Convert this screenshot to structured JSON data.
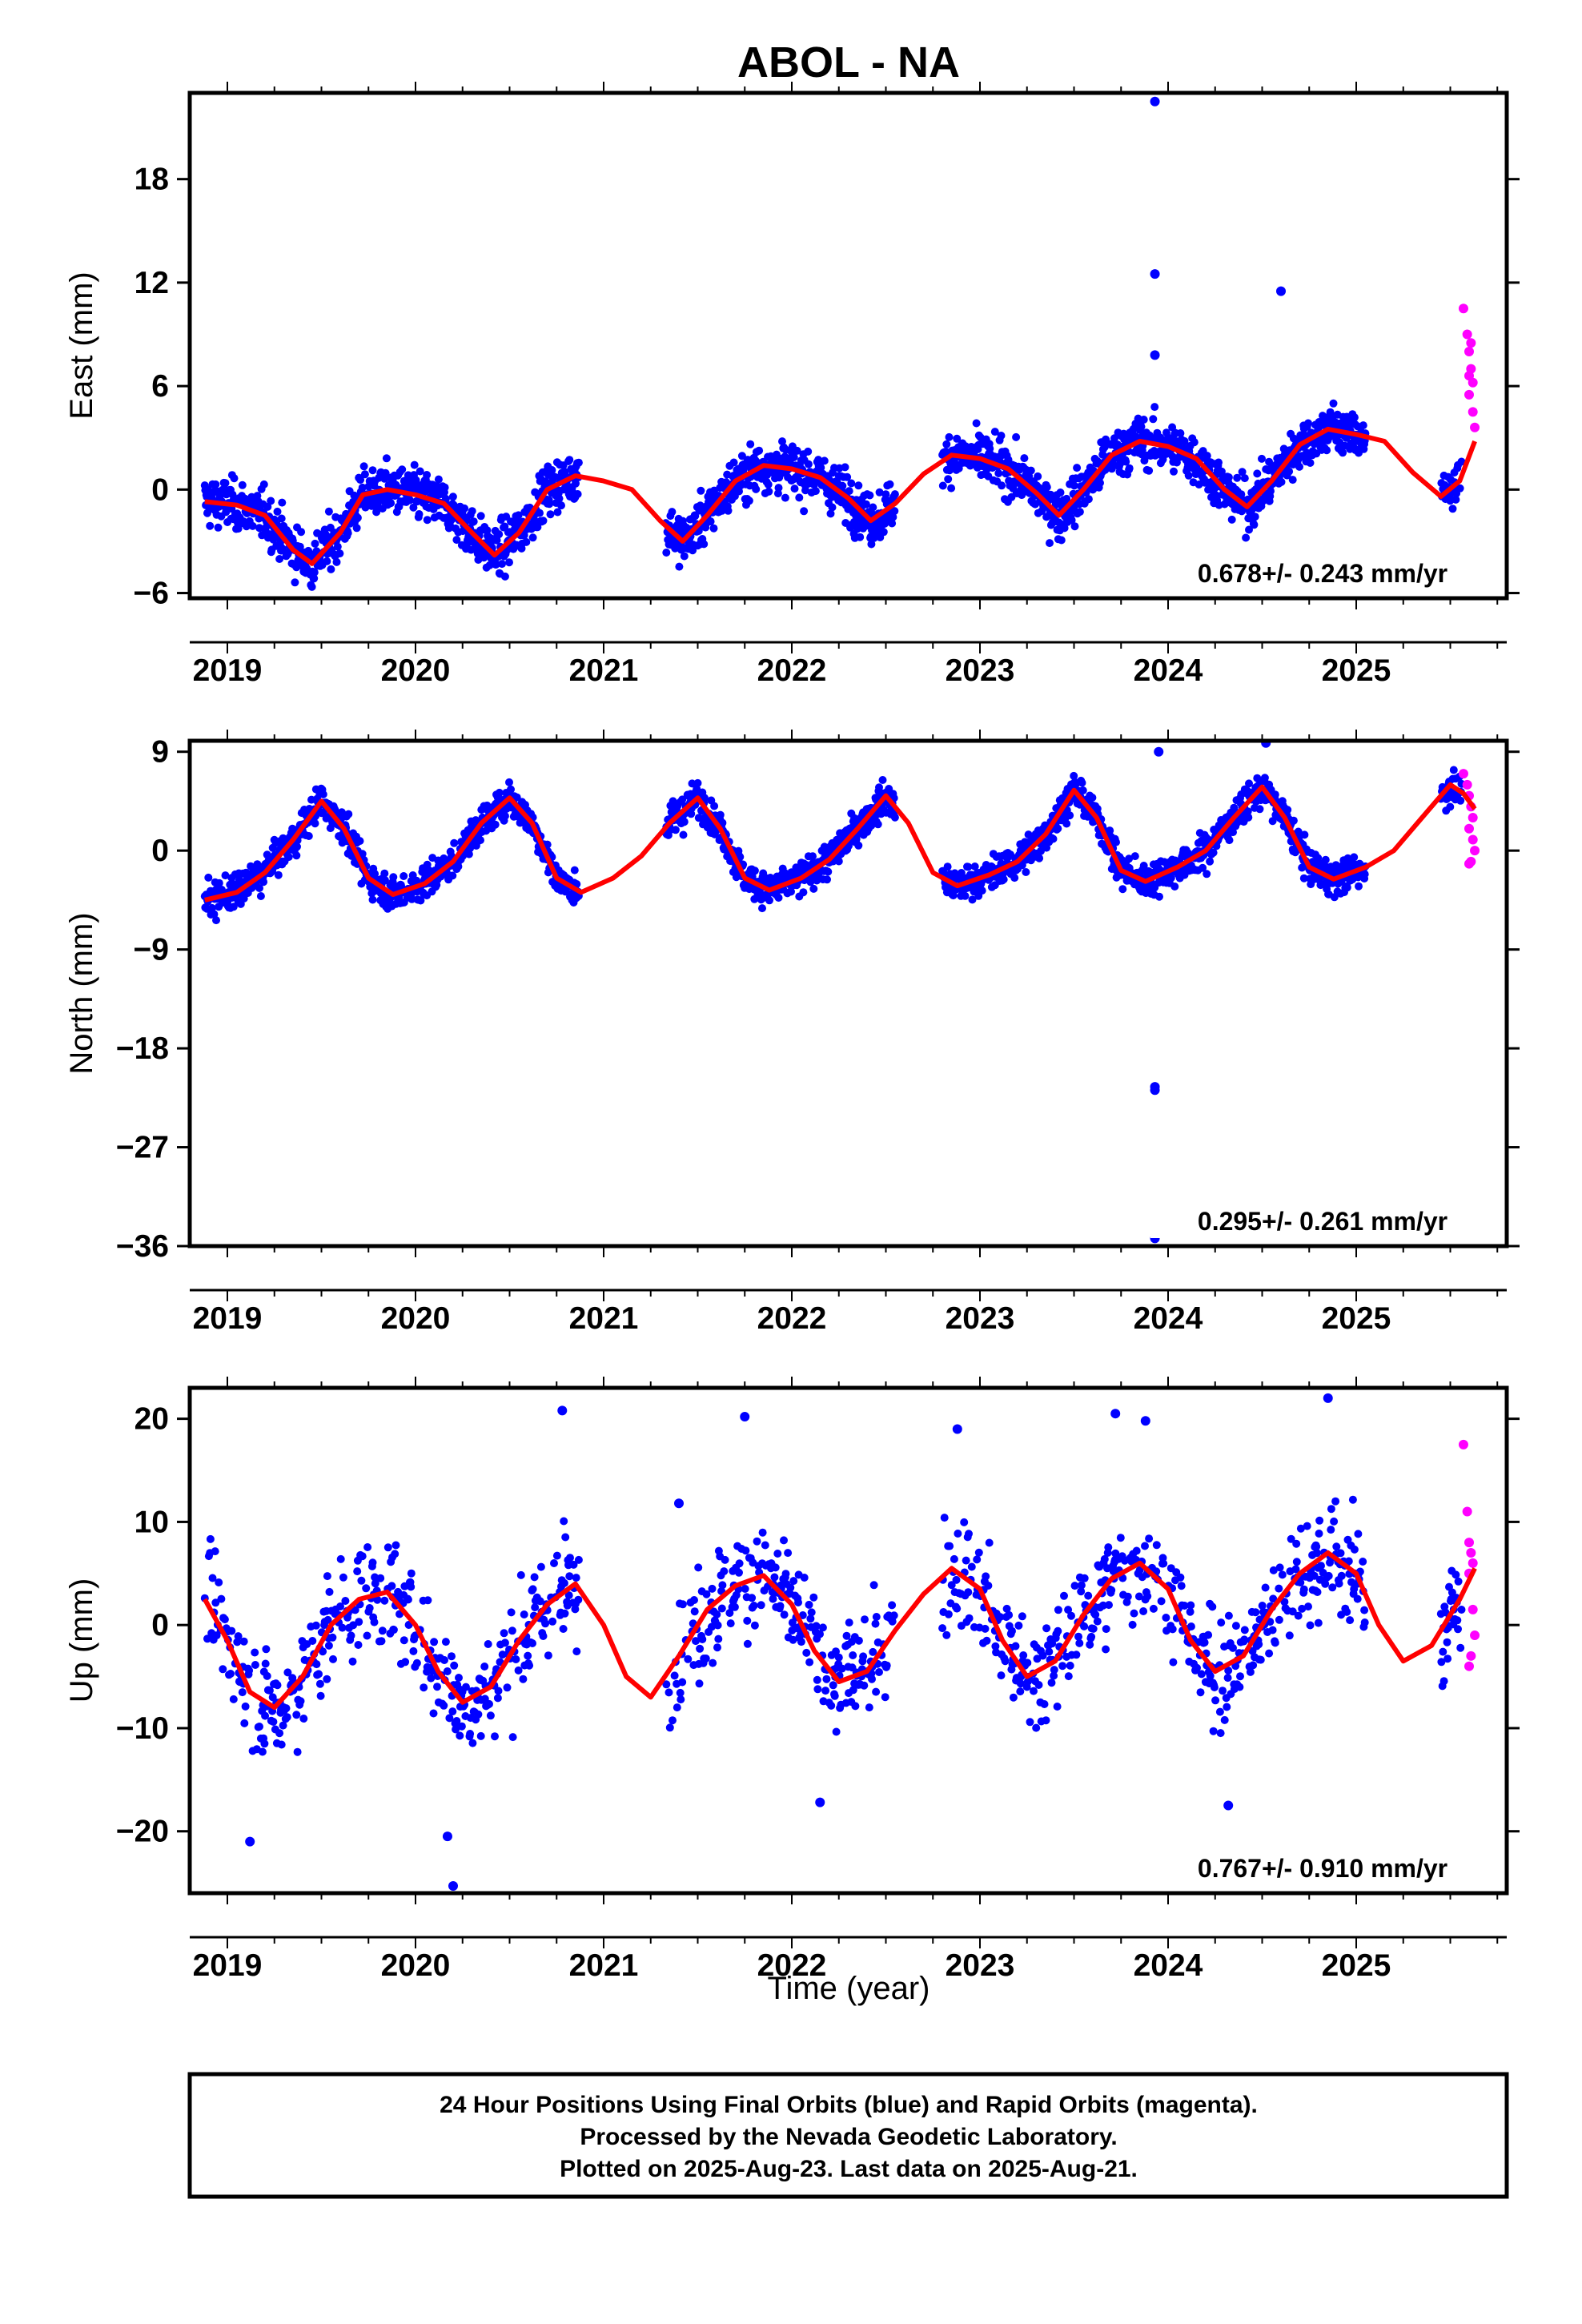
{
  "title": "ABOL - NA",
  "xlabel": "Time (year)",
  "footer": {
    "line1": "24 Hour Positions Using Final Orbits (blue) and Rapid Orbits (magenta).",
    "line2": "Processed by the Nevada Geodetic Laboratory.",
    "line3": "Plotted on 2025-Aug-23. Last data on 2025-Aug-21."
  },
  "colors": {
    "final": "#0000ff",
    "rapid": "#ff00ff",
    "model": "#ff0000",
    "axis": "#000000"
  },
  "chart_data": [
    {
      "type": "scatter",
      "ylabel": "East (mm)",
      "xlim": [
        2018.8,
        2025.8
      ],
      "ylim": [
        -6.3,
        23.0
      ],
      "x_ticks": [
        2019,
        2020,
        2021,
        2022,
        2023,
        2024,
        2025
      ],
      "y_ticks": [
        -6,
        0,
        6,
        12,
        18
      ],
      "rate": "0.678+/- 0.243 mm/yr",
      "model": {
        "name": "",
        "x": [
          2018.88,
          2019.05,
          2019.2,
          2019.35,
          2019.45,
          2019.6,
          2019.72,
          2019.85,
          2020.0,
          2020.15,
          2020.3,
          2020.42,
          2020.55,
          2020.7,
          2020.85,
          2021.0,
          2021.15,
          2021.3,
          2021.42,
          2021.55,
          2021.7,
          2021.85,
          2022.0,
          2022.15,
          2022.3,
          2022.42,
          2022.55,
          2022.7,
          2022.85,
          2023.0,
          2023.15,
          2023.3,
          2023.42,
          2023.55,
          2023.7,
          2023.85,
          2024.0,
          2024.15,
          2024.3,
          2024.42,
          2024.55,
          2024.7,
          2024.85,
          2025.0,
          2025.15,
          2025.3,
          2025.45,
          2025.55,
          2025.63
        ],
        "y": [
          -0.7,
          -0.9,
          -1.5,
          -3.5,
          -4.3,
          -2.5,
          -0.3,
          0.0,
          -0.3,
          -0.8,
          -2.5,
          -3.8,
          -2.5,
          0.0,
          0.8,
          0.5,
          0.0,
          -1.8,
          -3.0,
          -1.5,
          0.5,
          1.4,
          1.2,
          0.7,
          -0.5,
          -1.8,
          -0.8,
          0.9,
          2.0,
          1.8,
          1.2,
          -0.2,
          -1.5,
          0.0,
          2.0,
          2.8,
          2.5,
          1.8,
          0.0,
          -1.0,
          0.5,
          2.6,
          3.5,
          3.2,
          2.8,
          1.0,
          -0.4,
          0.5,
          2.8
        ]
      },
      "outliers": [
        [
          2023.93,
          22.5
        ],
        [
          2023.93,
          12.5
        ],
        [
          2023.93,
          7.8
        ],
        [
          2024.6,
          11.5
        ]
      ],
      "rapid": {
        "x": [
          2025.57,
          2025.59,
          2025.6,
          2025.61,
          2025.62,
          2025.6,
          2025.62,
          2025.63,
          2025.61,
          2025.6
        ],
        "y": [
          10.5,
          9.0,
          8.0,
          7.0,
          6.2,
          5.5,
          4.5,
          3.6,
          8.5,
          6.6
        ]
      }
    },
    {
      "type": "scatter",
      "ylabel": "North (mm)",
      "xlim": [
        2018.8,
        2025.8
      ],
      "ylim": [
        -36.0,
        10.0
      ],
      "x_ticks": [
        2019,
        2020,
        2021,
        2022,
        2023,
        2024,
        2025
      ],
      "y_ticks": [
        -36,
        -27,
        -18,
        -9,
        0,
        9
      ],
      "rate": "0.295+/- 0.261 mm/yr",
      "model": {
        "name": "",
        "x": [
          2018.88,
          2019.05,
          2019.2,
          2019.35,
          2019.5,
          2019.62,
          2019.75,
          2019.88,
          2020.05,
          2020.2,
          2020.35,
          2020.5,
          2020.62,
          2020.75,
          2020.88,
          2021.05,
          2021.2,
          2021.35,
          2021.5,
          2021.62,
          2021.75,
          2021.88,
          2022.05,
          2022.2,
          2022.35,
          2022.5,
          2022.62,
          2022.75,
          2022.88,
          2023.05,
          2023.2,
          2023.35,
          2023.5,
          2023.62,
          2023.75,
          2023.88,
          2024.05,
          2024.2,
          2024.35,
          2024.5,
          2024.62,
          2024.75,
          2024.88,
          2025.05,
          2025.2,
          2025.35,
          2025.5,
          2025.57,
          2025.63
        ],
        "y": [
          -4.5,
          -3.8,
          -2.0,
          1.0,
          4.5,
          2.0,
          -2.5,
          -4.0,
          -3.0,
          -1.0,
          2.5,
          4.8,
          2.5,
          -2.5,
          -3.8,
          -2.5,
          -0.5,
          2.5,
          4.8,
          2.0,
          -2.5,
          -3.6,
          -2.5,
          -0.8,
          2.0,
          5.0,
          2.5,
          -2.0,
          -3.2,
          -2.2,
          -1.0,
          1.5,
          5.5,
          3.0,
          -1.8,
          -2.8,
          -1.5,
          0.0,
          3.0,
          5.8,
          3.0,
          -1.5,
          -2.6,
          -1.5,
          0.0,
          3.0,
          6.0,
          5.2,
          3.8
        ]
      },
      "outliers": [
        [
          2023.93,
          -21.5
        ],
        [
          2023.93,
          -21.8
        ],
        [
          2023.93,
          -35.3
        ],
        [
          2023.95,
          9.0
        ],
        [
          2024.52,
          9.8
        ]
      ],
      "rapid": {
        "x": [
          2025.57,
          2025.59,
          2025.6,
          2025.61,
          2025.62,
          2025.6,
          2025.62,
          2025.63,
          2025.61,
          2025.6
        ],
        "y": [
          7.0,
          6.0,
          5.0,
          4.0,
          3.0,
          2.0,
          1.0,
          0.0,
          -1.0,
          -1.2
        ]
      }
    },
    {
      "type": "scatter",
      "ylabel": "Up (mm)",
      "xlim": [
        2018.8,
        2025.8
      ],
      "ylim": [
        -26.0,
        23.0
      ],
      "x_ticks": [
        2019,
        2020,
        2021,
        2022,
        2023,
        2024,
        2025
      ],
      "y_ticks": [
        -20,
        -10,
        0,
        10,
        20
      ],
      "rate": "0.767+/- 0.910 mm/yr",
      "model": {
        "name": "",
        "x": [
          2018.88,
          2019.0,
          2019.12,
          2019.25,
          2019.4,
          2019.55,
          2019.7,
          2019.85,
          2020.0,
          2020.12,
          2020.25,
          2020.4,
          2020.55,
          2020.7,
          2020.85,
          2021.0,
          2021.12,
          2021.25,
          2021.4,
          2021.55,
          2021.7,
          2021.85,
          2022.0,
          2022.12,
          2022.25,
          2022.4,
          2022.55,
          2022.7,
          2022.85,
          2023.0,
          2023.12,
          2023.25,
          2023.4,
          2023.55,
          2023.7,
          2023.85,
          2024.0,
          2024.12,
          2024.25,
          2024.4,
          2024.55,
          2024.7,
          2024.85,
          2025.0,
          2025.12,
          2025.25,
          2025.4,
          2025.55,
          2025.63
        ],
        "y": [
          2.5,
          -1.5,
          -6.5,
          -8.0,
          -5.0,
          0.0,
          2.5,
          3.2,
          0.0,
          -4.5,
          -7.5,
          -6.0,
          -1.5,
          2.0,
          4.0,
          0.0,
          -5.0,
          -7.0,
          -3.0,
          1.5,
          3.8,
          4.8,
          2.0,
          -2.5,
          -5.5,
          -4.5,
          -0.5,
          3.0,
          5.5,
          3.5,
          -1.5,
          -5.0,
          -3.5,
          1.0,
          4.5,
          6.0,
          3.5,
          -1.5,
          -4.5,
          -3.0,
          1.5,
          5.0,
          7.0,
          5.0,
          0.0,
          -3.5,
          -2.0,
          2.5,
          5.5
        ]
      },
      "outliers": [
        [
          2019.12,
          -21.0
        ],
        [
          2020.17,
          -20.5
        ],
        [
          2020.2,
          -25.3
        ],
        [
          2020.78,
          20.8
        ],
        [
          2021.75,
          20.2
        ],
        [
          2022.15,
          -17.2
        ],
        [
          2023.72,
          20.5
        ],
        [
          2023.88,
          19.8
        ],
        [
          2024.32,
          -17.5
        ],
        [
          2024.85,
          22.0
        ],
        [
          2022.88,
          19.0
        ],
        [
          2021.4,
          11.8
        ]
      ],
      "rapid": {
        "x": [
          2025.57,
          2025.59,
          2025.6,
          2025.61,
          2025.62,
          2025.6,
          2025.62,
          2025.63,
          2025.61,
          2025.6
        ],
        "y": [
          17.5,
          11.0,
          8.0,
          7.0,
          6.0,
          5.0,
          1.5,
          -1.0,
          -3.0,
          -4.0
        ]
      }
    }
  ]
}
